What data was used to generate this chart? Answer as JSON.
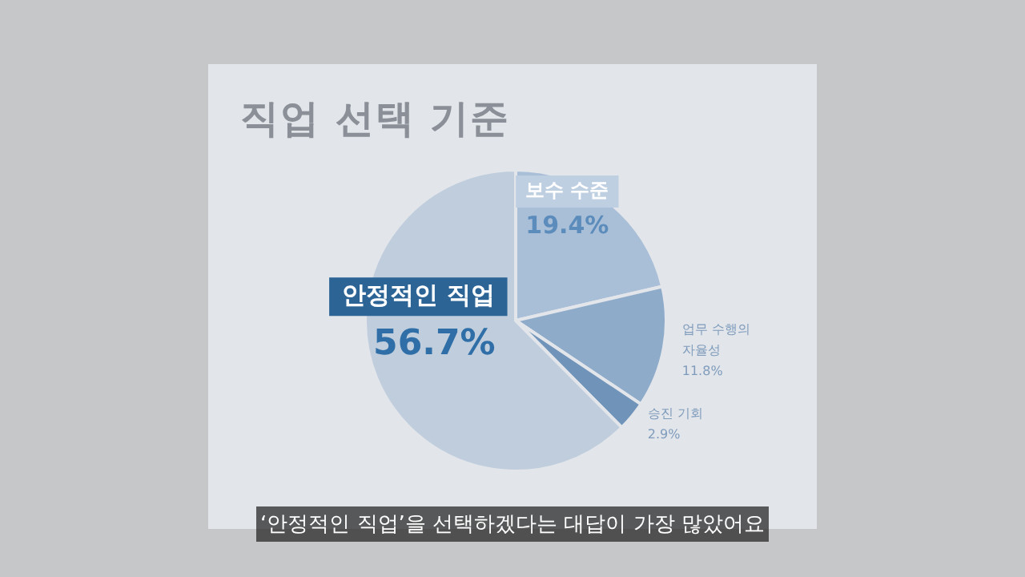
{
  "chart_data": {
    "type": "pie",
    "title": "직업 선택 기준",
    "categories": [
      "보수 수준",
      "업무 수행의 자율성",
      "승진 기회",
      "안정적인 직업"
    ],
    "values": [
      19.4,
      11.8,
      2.9,
      56.7
    ],
    "value_labels": [
      "19.4%",
      "11.8%",
      "2.9%",
      "56.7%"
    ],
    "colors": [
      "#a9bed7",
      "#8eabca",
      "#6f93b9",
      "#bfcddd"
    ],
    "annotations": [
      "‘안정적인 직업’을 선택하겠다는 대답이 가장 많았어요"
    ],
    "legend": false
  }
}
